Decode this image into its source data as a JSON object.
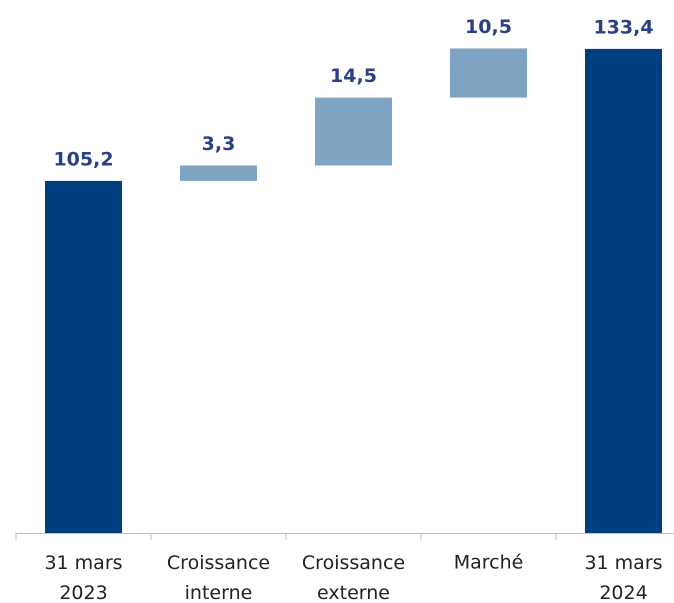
{
  "chart_data": {
    "type": "waterfall",
    "categories": [
      "31 mars 2023",
      "Croissance interne",
      "Croissance externe",
      "Marché",
      "31 mars 2024"
    ],
    "values": [
      105.2,
      3.3,
      14.5,
      10.5,
      133.4
    ],
    "value_labels": [
      "105,2",
      "3,3",
      "14,5",
      "10,5",
      "133,4"
    ],
    "measure": [
      "absolute",
      "relative",
      "relative",
      "relative",
      "absolute"
    ],
    "colors": [
      "#003f7f",
      "#7fa3c2",
      "#7fa3c2",
      "#7fa3c2",
      "#003f7f"
    ],
    "ylim": [
      30,
      140
    ]
  }
}
